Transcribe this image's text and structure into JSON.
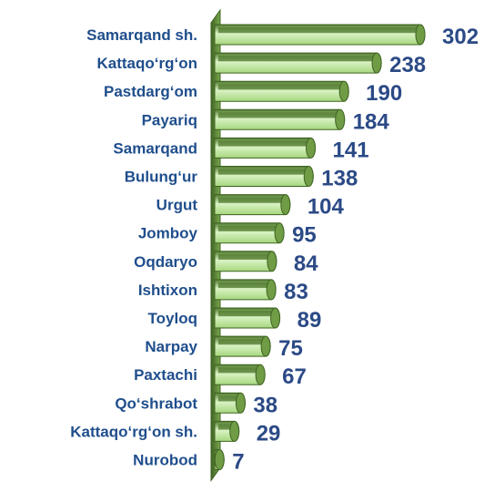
{
  "chart_data": {
    "type": "bar",
    "orientation": "horizontal",
    "style": "3d-cylinder",
    "categories": [
      "Samarqand sh.",
      "Kattaqo‘rg‘on",
      "Pastdarg‘om",
      "Payariq",
      "Samarqand",
      "Bulung‘ur",
      "Urgut",
      "Jomboy",
      "Oqdaryo",
      "Ishtixon",
      "Toyloq",
      "Narpay",
      "Paxtachi",
      "Qo‘shrabot",
      "Kattaqo‘rg‘on sh.",
      "Nurobod"
    ],
    "values": [
      302,
      238,
      190,
      184,
      141,
      138,
      104,
      95,
      84,
      83,
      89,
      75,
      67,
      38,
      29,
      7
    ],
    "xlim": [
      0,
      302
    ],
    "grid": false,
    "legend": "none"
  },
  "colors": {
    "background": "#ffffff",
    "label_text": "#1f4e8c",
    "value_text": "#2b4a86",
    "bar_light": "#d9f2c4",
    "bar_mid": "#a6d77e",
    "bar_dark": "#4f7a2c",
    "bar_end": "#6f9c45",
    "bar_outline": "#3f6322",
    "wall_front": "#7aa84f",
    "wall_dark": "#3f6322"
  }
}
